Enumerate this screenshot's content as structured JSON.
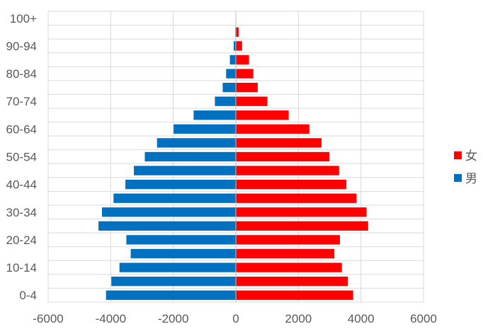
{
  "chart_data": {
    "type": "bar",
    "orientation": "horizontal",
    "stacked": "diverging",
    "categories": [
      "0-4",
      "5-9",
      "10-14",
      "15-19",
      "20-24",
      "25-29",
      "30-34",
      "35-39",
      "40-44",
      "45-49",
      "50-54",
      "55-59",
      "60-64",
      "65-69",
      "70-74",
      "75-79",
      "80-84",
      "85-89",
      "90-94",
      "95-99",
      "100+"
    ],
    "category_labels_shown": [
      "0-4",
      "",
      "10-14",
      "",
      "20-24",
      "",
      "30-34",
      "",
      "40-44",
      "",
      "50-54",
      "",
      "60-64",
      "",
      "70-74",
      "",
      "80-84",
      "",
      "90-94",
      "",
      "100+"
    ],
    "series": [
      {
        "name": "女",
        "color": "#ff0000",
        "values": [
          3750,
          3580,
          3390,
          3150,
          3330,
          4230,
          4180,
          3860,
          3530,
          3300,
          2990,
          2740,
          2350,
          1690,
          1010,
          700,
          560,
          420,
          200,
          90,
          10
        ]
      },
      {
        "name": "男",
        "color": "#0070c0",
        "values": [
          -4150,
          -3980,
          -3720,
          -3360,
          -3500,
          -4390,
          -4280,
          -3910,
          -3530,
          -3260,
          -2910,
          -2520,
          -1990,
          -1350,
          -670,
          -420,
          -310,
          -190,
          -70,
          -20,
          -5
        ]
      }
    ],
    "xlim": [
      -6000,
      6000
    ],
    "x_ticks": [
      "-6000",
      "-4000",
      "-2000",
      "0",
      "2000",
      "4000",
      "6000"
    ],
    "grid": "vertical",
    "legend_position": "right"
  }
}
